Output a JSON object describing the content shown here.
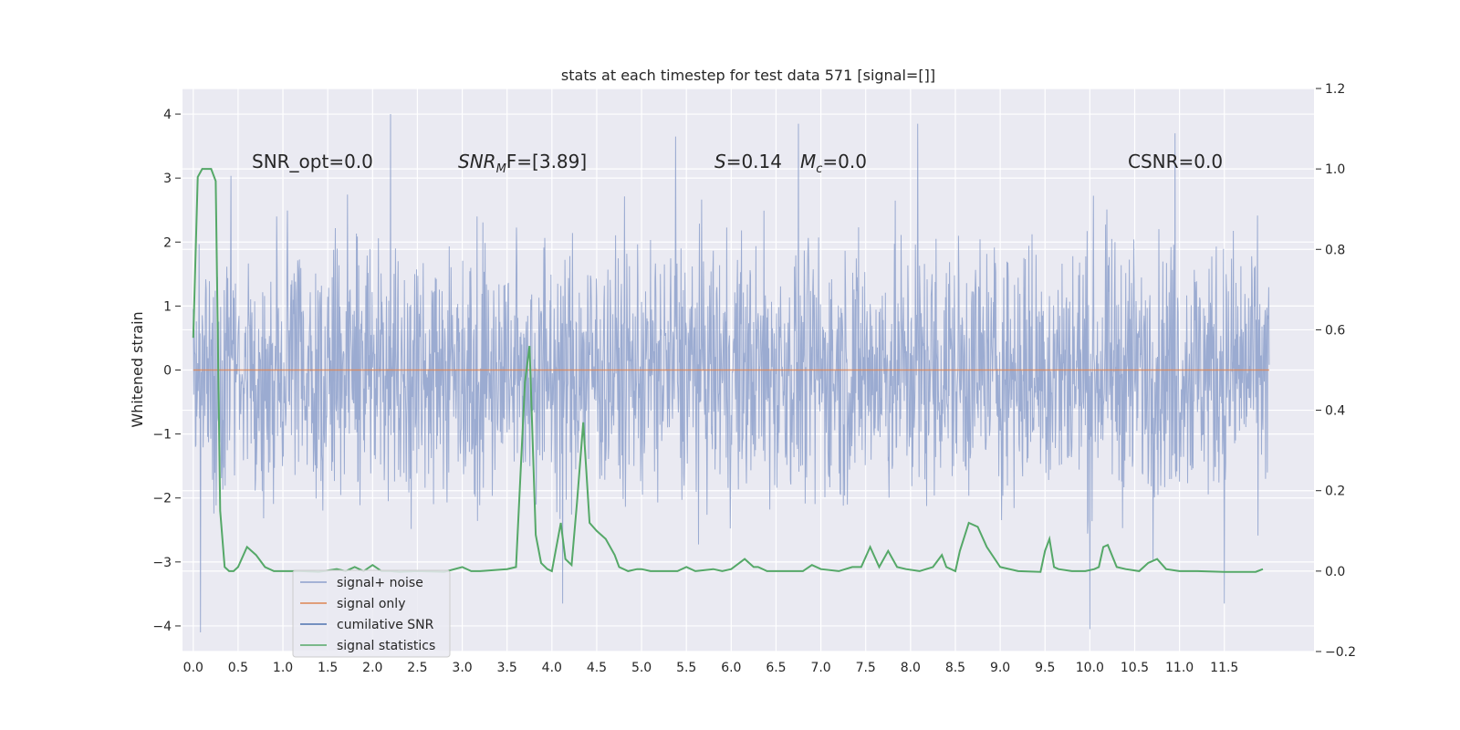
{
  "chart_data": {
    "type": "line",
    "title": "stats at each timestep for test data 571 [signal=[]]",
    "ylabel": "Whitened strain",
    "xlabel": "",
    "xlim": [
      -0.12,
      12.5
    ],
    "ylim": [
      -4.4,
      4.4
    ],
    "y2lim": [
      -0.2,
      1.2
    ],
    "x_ticks": [
      0.0,
      0.5,
      1.0,
      1.5,
      2.0,
      2.5,
      3.0,
      3.5,
      4.0,
      4.5,
      5.0,
      5.5,
      6.0,
      6.5,
      7.0,
      7.5,
      8.0,
      8.5,
      9.0,
      9.5,
      10.0,
      10.5,
      11.0,
      11.5
    ],
    "x_tick_labels": [
      "0.0",
      "0.5",
      "1.0",
      "1.5",
      "2.0",
      "2.5",
      "3.0",
      "3.5",
      "4.0",
      "4.5",
      "5.0",
      "5.5",
      "6.0",
      "6.5",
      "7.0",
      "7.5",
      "8.0",
      "8.5",
      "9.0",
      "9.5",
      "10.0",
      "10.5",
      "11.0",
      "11.5"
    ],
    "y_ticks": [
      -4,
      -3,
      -2,
      -1,
      0,
      1,
      2,
      3,
      4
    ],
    "y_tick_labels": [
      "−4",
      "−3",
      "−2",
      "−1",
      "0",
      "1",
      "2",
      "3",
      "4"
    ],
    "y2_ticks": [
      -0.2,
      0.0,
      0.2,
      0.4,
      0.6,
      0.8,
      1.0,
      1.2
    ],
    "y2_tick_labels": [
      "−0.2",
      "0.0",
      "0.2",
      "0.4",
      "0.6",
      "0.8",
      "1.0",
      "1.2"
    ],
    "grid": true,
    "legend_position": "lower-left",
    "annotations": {
      "snr_opt": "SNR_opt=0.0",
      "snr_mf_main": "SNR",
      "snr_mf_sub": "M",
      "snr_mf_rest": "F=[3.89]",
      "s_stat_sym": "S",
      "s_stat_rest": "=0.14",
      "mc_sym": "M",
      "mc_sub": "c",
      "mc_rest": "=0.0",
      "csnr": "CSNR=0.0"
    },
    "series": [
      {
        "name": "signal+ noise",
        "axis": "left",
        "color": "#8da0cb",
        "x_range": [
          0.0,
          12.0
        ],
        "typical_band": [
          -1.9,
          1.9
        ],
        "extremes": [
          {
            "x": 0.08,
            "y": -4.1
          },
          {
            "x": 2.2,
            "y": 4.0
          },
          {
            "x": 6.75,
            "y": 3.85
          },
          {
            "x": 8.08,
            "y": 3.85
          },
          {
            "x": 10.0,
            "y": -4.05
          },
          {
            "x": 5.38,
            "y": 3.65
          },
          {
            "x": 10.95,
            "y": 3.7
          },
          {
            "x": 11.5,
            "y": -3.65
          },
          {
            "x": 4.12,
            "y": -3.65
          }
        ]
      },
      {
        "name": "signal only",
        "axis": "left",
        "color": "#dd8452",
        "x": [
          0.0,
          12.0
        ],
        "y": [
          0.0,
          0.0
        ]
      },
      {
        "name": "cumilative SNR",
        "axis": "right",
        "color": "#4c72b0",
        "x": [],
        "y": []
      },
      {
        "name": "signal statistics",
        "axis": "right",
        "color": "#55a868",
        "x": [
          0.0,
          0.05,
          0.1,
          0.15,
          0.2,
          0.25,
          0.3,
          0.35,
          0.4,
          0.45,
          0.5,
          0.6,
          0.7,
          0.8,
          0.9,
          1.0,
          1.1,
          1.2,
          1.4,
          1.6,
          1.7,
          1.8,
          1.9,
          2.0,
          2.1,
          2.2,
          2.3,
          2.5,
          2.8,
          3.0,
          3.1,
          3.2,
          3.5,
          3.6,
          3.7,
          3.75,
          3.82,
          3.88,
          3.95,
          4.0,
          4.1,
          4.15,
          4.22,
          4.28,
          4.35,
          4.42,
          4.5,
          4.6,
          4.7,
          4.75,
          4.85,
          4.95,
          5.0,
          5.1,
          5.2,
          5.4,
          5.5,
          5.6,
          5.8,
          5.9,
          6.0,
          6.15,
          6.25,
          6.3,
          6.4,
          6.5,
          6.6,
          6.8,
          6.9,
          7.0,
          7.2,
          7.35,
          7.45,
          7.55,
          7.65,
          7.75,
          7.85,
          7.95,
          8.1,
          8.25,
          8.35,
          8.4,
          8.5,
          8.55,
          8.65,
          8.75,
          8.85,
          9.0,
          9.2,
          9.45,
          9.5,
          9.55,
          9.6,
          9.65,
          9.8,
          9.95,
          10.05,
          10.1,
          10.15,
          10.2,
          10.3,
          10.4,
          10.55,
          10.65,
          10.75,
          10.85,
          11.0,
          11.2,
          11.5,
          11.7,
          11.85,
          11.93
        ],
        "y": [
          0.58,
          0.98,
          1.0,
          1.0,
          1.0,
          0.97,
          0.15,
          0.01,
          0.0,
          0.0,
          0.01,
          0.06,
          0.04,
          0.01,
          0.0,
          0.0,
          0.0,
          0.0,
          -0.002,
          0.005,
          0.0,
          0.01,
          0.0,
          0.015,
          0.0,
          0.0,
          -0.002,
          0.0,
          -0.002,
          0.01,
          0.0,
          0.0,
          0.005,
          0.01,
          0.47,
          0.56,
          0.09,
          0.02,
          0.005,
          0.0,
          0.12,
          0.03,
          0.015,
          0.17,
          0.37,
          0.12,
          0.1,
          0.08,
          0.04,
          0.01,
          0.0,
          0.005,
          0.005,
          0.0,
          0.0,
          0.0,
          0.01,
          0.0,
          0.005,
          0.0,
          0.005,
          0.03,
          0.01,
          0.01,
          0.0,
          0.0,
          0.0,
          0.0,
          0.015,
          0.005,
          0.0,
          0.01,
          0.01,
          0.06,
          0.01,
          0.05,
          0.01,
          0.005,
          0.0,
          0.01,
          0.04,
          0.01,
          0.0,
          0.05,
          0.12,
          0.11,
          0.06,
          0.01,
          0.0,
          -0.002,
          0.05,
          0.08,
          0.01,
          0.005,
          0.0,
          0.0,
          0.005,
          0.01,
          0.06,
          0.065,
          0.01,
          0.005,
          0.0,
          0.02,
          0.03,
          0.005,
          0.0,
          0.0,
          -0.002,
          -0.002,
          -0.002,
          0.005
        ]
      }
    ]
  }
}
